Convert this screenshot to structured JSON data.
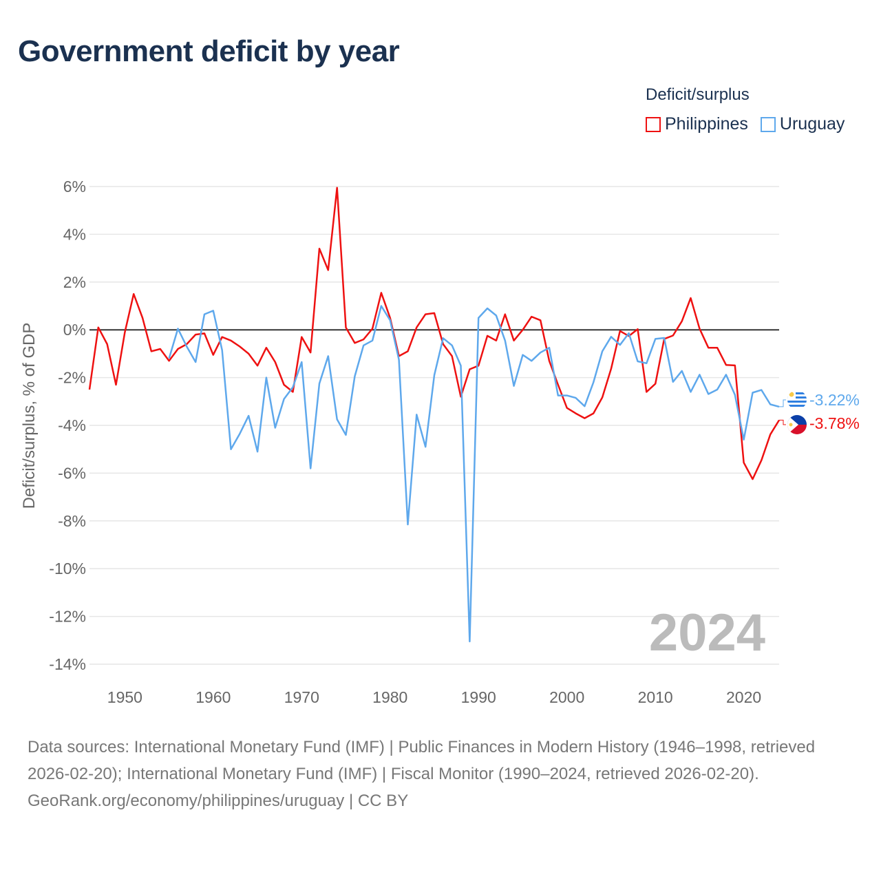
{
  "title": "Government deficit by year",
  "legend": {
    "title": "Deficit/surplus",
    "items": [
      {
        "label": "Philippines",
        "color": "#ee1111"
      },
      {
        "label": "Uruguay",
        "color": "#5ea8ec"
      }
    ]
  },
  "year_watermark": "2024",
  "end_labels": {
    "philippines": "-3.78%",
    "uruguay": "-3.22%"
  },
  "footer": {
    "sources": "Data sources: International Monetary Fund (IMF) | Public Finances in Modern History (1946–1998, retrieved 2026-02-20); International Monetary Fund (IMF) | Fiscal Monitor (1990–2024, retrieved 2026-02-20).",
    "link": "GeoRank.org/economy/philippines/uruguay | CC BY"
  },
  "chart_data": {
    "type": "line",
    "title": "Government deficit by year",
    "xlabel": "",
    "ylabel": "Deficit/surplus, % of GDP",
    "xlim": [
      1946,
      2024
    ],
    "ylim": [
      -14,
      6
    ],
    "xticks": [
      1950,
      1960,
      1970,
      1980,
      1990,
      2000,
      2010,
      2020
    ],
    "xtick_labels": [
      "1950",
      "1960",
      "1970",
      "1980",
      "1990",
      "2000",
      "2010",
      "2020"
    ],
    "yticks": [
      6,
      4,
      2,
      0,
      -2,
      -4,
      -6,
      -8,
      -10,
      -12,
      -14
    ],
    "ytick_labels": [
      "6%",
      "4%",
      "2%",
      "0%",
      "-2%",
      "-4%",
      "-6%",
      "-8%",
      "-10%",
      "-12%",
      "-14%"
    ],
    "grid": true,
    "legend_position": "top-right",
    "series": [
      {
        "name": "Philippines",
        "color": "#ee1111",
        "start_year": 1946,
        "values": [
          -2.5,
          0.1,
          -0.6,
          -2.3,
          -0.1,
          1.5,
          0.5,
          -0.9,
          -0.8,
          -1.3,
          -0.8,
          -0.6,
          -0.2,
          -0.15,
          -1.05,
          -0.3,
          -0.45,
          -0.7,
          -1.0,
          -1.5,
          -0.75,
          -1.35,
          -2.3,
          -2.6,
          -0.3,
          -0.95,
          3.4,
          2.5,
          5.95,
          0.1,
          -0.55,
          -0.4,
          0.05,
          1.55,
          0.5,
          -1.1,
          -0.9,
          0.1,
          0.65,
          0.7,
          -0.6,
          -1.1,
          -2.8,
          -1.65,
          -1.5,
          -0.25,
          -0.45,
          0.65,
          -0.45,
          0.0,
          0.55,
          0.4,
          -1.3,
          -2.3,
          -3.27,
          -3.5,
          -3.7,
          -3.5,
          -2.83,
          -1.63,
          -0.05,
          -0.26,
          0.03,
          -2.6,
          -2.26,
          -0.38,
          -0.24,
          0.36,
          1.33,
          0.05,
          -0.75,
          -0.75,
          -1.47,
          -1.49,
          -5.56,
          -6.25,
          -5.46,
          -4.38,
          -3.78
        ]
      },
      {
        "name": "Uruguay",
        "color": "#5ea8ec",
        "start_year": 1955,
        "values": [
          -1.2,
          0.05,
          -0.7,
          -1.35,
          0.65,
          0.8,
          -0.85,
          -5.0,
          -4.35,
          -3.6,
          -5.1,
          -2.0,
          -4.1,
          -2.9,
          -2.4,
          -1.35,
          -5.8,
          -2.25,
          -1.1,
          -3.75,
          -4.4,
          -1.95,
          -0.65,
          -0.45,
          1.0,
          0.4,
          -1.25,
          -8.15,
          -3.55,
          -4.9,
          -1.9,
          -0.35,
          -0.65,
          -1.5,
          -13.05,
          0.5,
          0.9,
          0.6,
          -0.45,
          -2.35,
          -1.05,
          -1.3,
          -0.95,
          -0.75,
          -2.75,
          -2.75,
          -2.85,
          -3.2,
          -2.2,
          -0.9,
          -0.29,
          -0.63,
          -0.14,
          -1.32,
          -1.4,
          -0.38,
          -0.34,
          -2.18,
          -1.72,
          -2.6,
          -1.88,
          -2.69,
          -2.5,
          -1.88,
          -2.72,
          -4.6,
          -2.63,
          -2.52,
          -3.12,
          -3.22
        ]
      }
    ]
  }
}
